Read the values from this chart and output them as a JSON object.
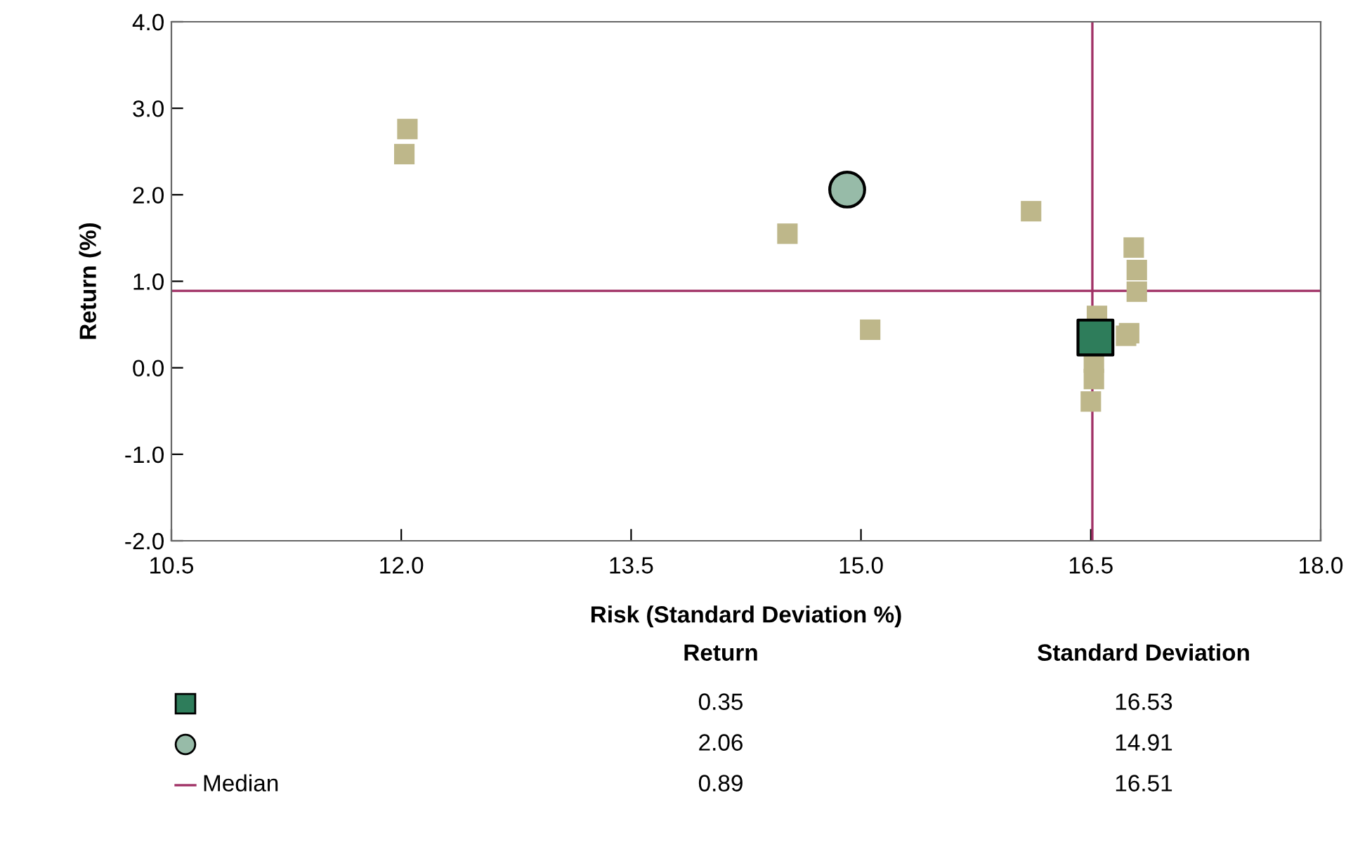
{
  "chart_data": {
    "type": "scatter",
    "xlabel": "Risk (Standard Deviation %)",
    "ylabel": "Return (%)",
    "xlim": [
      10.5,
      18.0
    ],
    "xticks": [
      10.5,
      {
        "value": 12,
        "label": "12.0"
      },
      13.5,
      {
        "value": 15,
        "label": "15.0"
      },
      16.5,
      {
        "value": 18,
        "label": "18.0"
      }
    ],
    "ylim": [
      -2.0,
      4.0
    ],
    "yticks": [
      {
        "value": -2,
        "label": "-2.0"
      },
      {
        "value": -1,
        "label": "-1.0"
      },
      {
        "value": 0,
        "label": "0.0"
      },
      {
        "value": 1,
        "label": "1.0"
      },
      {
        "value": 2,
        "label": "2.0"
      },
      {
        "value": 3,
        "label": "3.0"
      },
      {
        "value": 4,
        "label": "4.0"
      }
    ],
    "grid": false,
    "legend": "bottom",
    "annotations": [
      "Return",
      "Standard Deviation",
      "0.35",
      "16.53",
      "2.06",
      "14.91",
      "0.89",
      "16.51"
    ],
    "series": [
      {
        "color": "#beb78a",
        "marker": "square",
        "x": [
          12.04,
          12.02,
          14.52,
          15.06,
          16.11,
          16.78,
          16.8,
          16.8,
          16.54,
          16.75,
          16.73,
          16.52,
          16.52,
          16.5
        ],
        "values": [
          2.76,
          2.47,
          1.55,
          0.44,
          1.81,
          1.39,
          1.13,
          0.88,
          0.6,
          0.4,
          0.37,
          0.06,
          -0.13,
          -0.39
        ]
      },
      {
        "color": "#2e7d5b",
        "marker": "square",
        "x": [
          16.53
        ],
        "values": [
          0.35
        ]
      },
      {
        "color": "#97bba8",
        "marker": "circle",
        "x": [
          14.91
        ],
        "values": [
          2.06
        ]
      }
    ],
    "ref_lines": [
      {
        "axis": "y",
        "value": 0.89,
        "label": "Median",
        "color": "#a03065"
      },
      {
        "axis": "x",
        "value": 16.51,
        "color": "#a03065"
      }
    ]
  }
}
